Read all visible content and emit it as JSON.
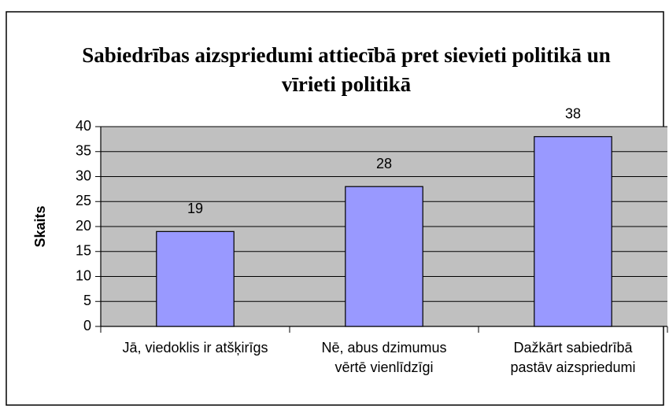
{
  "chart_data": {
    "type": "bar",
    "title": "Sabiedrības aizspriedumi attiecībā pret sievieti politikā un vīrieti politikā",
    "y_label": "Skaits",
    "categories": [
      "Jā, viedoklis ir atšķirīgs",
      "Nē, abus dzimumus vērtē vienlīdzīgi",
      "Dažkārt sabiedrībā pastāv aizspriedumi"
    ],
    "values": [
      19,
      28,
      38
    ],
    "color": "#9999ff",
    "ylim": [
      0,
      40
    ],
    "yticks": [
      0,
      5,
      10,
      15,
      20,
      25,
      30,
      35,
      40
    ],
    "grid": true
  }
}
